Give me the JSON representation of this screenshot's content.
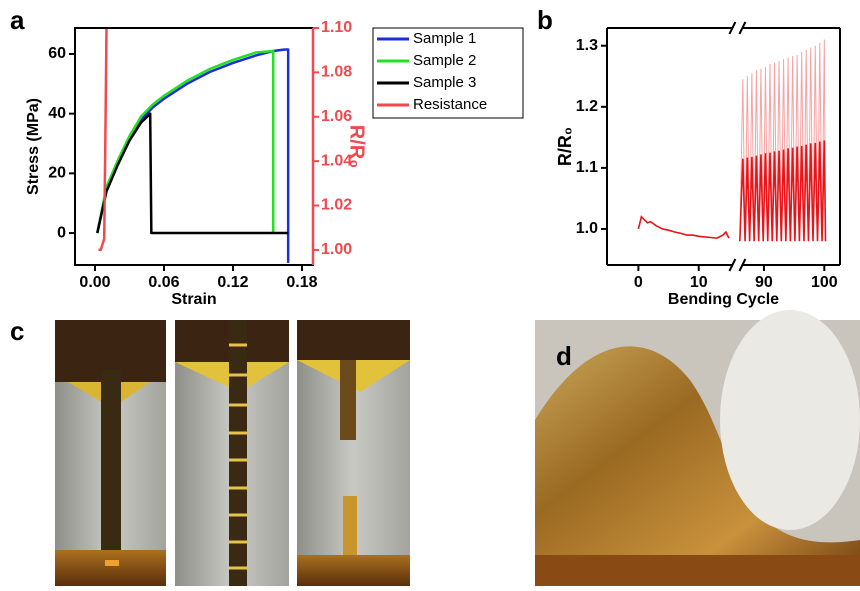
{
  "panel_labels": [
    "a",
    "b",
    "c",
    "d"
  ],
  "chart_data": [
    {
      "type": "line",
      "x_label": "Strain",
      "y_label": "Stress (MPa)",
      "y2_label": "R/R₀",
      "y2_color": "#f0494f",
      "xlim": [
        -0.0174,
        0.1896
      ],
      "xticks": [
        {
          "value": 0,
          "label": "0.00"
        },
        0.06,
        0.12,
        0.18
      ],
      "ylim": [
        -10.7,
        68.7
      ],
      "yticks": [
        0,
        20,
        40,
        60
      ],
      "y2lim": [
        0.9932,
        1.1
      ],
      "y2ticks": [
        {
          "value": 1,
          "label": "1.00"
        },
        1.02,
        1.04,
        1.06,
        1.08,
        {
          "value": 1.1,
          "label": "1.10"
        }
      ],
      "legend": "right",
      "series": [
        {
          "name": "Sample 1",
          "color": "#1a2fd6",
          "x": [
            0.002,
            0.01,
            0.02,
            0.03,
            0.04,
            0.05,
            0.06,
            0.08,
            0.1,
            0.12,
            0.14,
            0.155,
            0.165,
            0.168,
            0.168
          ],
          "values": [
            0,
            15,
            24,
            32,
            38,
            42,
            45,
            50,
            54,
            57,
            59.5,
            61,
            61.5,
            61.5,
            -10
          ]
        },
        {
          "name": "Sample 2",
          "color": "#22e022",
          "x": [
            0.002,
            0.01,
            0.02,
            0.03,
            0.04,
            0.05,
            0.06,
            0.08,
            0.1,
            0.12,
            0.14,
            0.155,
            0.155
          ],
          "values": [
            0,
            15.5,
            24.5,
            32.5,
            39,
            43,
            46,
            51,
            55,
            58,
            60.5,
            61,
            0
          ]
        },
        {
          "name": "Sample 3",
          "color": "#000000",
          "x": [
            0.002,
            0.01,
            0.02,
            0.03,
            0.04,
            0.048,
            0.049,
            0.168
          ],
          "values": [
            0,
            14,
            23,
            31,
            37,
            40,
            0,
            0
          ]
        },
        {
          "name": "Resistance",
          "color": "#f0494f",
          "axis": "y2",
          "x": [
            0.003,
            0.005,
            0.008,
            0.009,
            0.01
          ],
          "values": [
            1.0,
            1.0,
            1.005,
            1.05,
            1.1
          ]
        }
      ]
    },
    {
      "type": "line",
      "x_label": "Bending Cycle",
      "y_label": "R/R₀",
      "axis_break": true,
      "x_segments": [
        {
          "xlim": [
            -5.2,
            16.4
          ],
          "xticks": [
            0,
            10
          ]
        },
        {
          "xlim": [
            85.6,
            102.6
          ],
          "xticks": [
            90,
            100
          ]
        }
      ],
      "ylim": [
        0.941,
        1.329
      ],
      "yticks": [
        {
          "value": 1,
          "label": "1.0"
        },
        1.1,
        1.2,
        1.3
      ],
      "series": [
        {
          "color": "#f5a3a3",
          "x": [
            86,
            86.5,
            86.875,
            87.25,
            87.625,
            88,
            88.375,
            88.75,
            89.125,
            89.5,
            89.875,
            90.25,
            90.625,
            91,
            91.375,
            91.75,
            92.125,
            92.5,
            92.875,
            93.25,
            93.625,
            94,
            94.375,
            94.75,
            95.125,
            95.5,
            95.875,
            96.25,
            96.625,
            97,
            97.375,
            97.75,
            98.125,
            98.5,
            98.875,
            99.25,
            99.625,
            100,
            100.2
          ],
          "values": [
            0.98,
            1.245,
            0.98,
            1.25,
            0.98,
            1.255,
            0.98,
            1.26,
            0.98,
            1.262,
            0.98,
            1.265,
            0.98,
            1.27,
            0.98,
            1.272,
            0.98,
            1.275,
            0.98,
            1.278,
            0.98,
            1.28,
            0.98,
            1.283,
            0.98,
            1.285,
            0.98,
            1.29,
            0.98,
            1.293,
            0.98,
            1.297,
            0.98,
            1.3,
            0.98,
            1.305,
            0.98,
            1.31,
            0.98
          ]
        },
        {
          "color": "#e8141a",
          "x": [
            0,
            0.5,
            1,
            1.5,
            2,
            3,
            4,
            5,
            6,
            7,
            8,
            9,
            10,
            11,
            12,
            13,
            14,
            14.5,
            15,
            null,
            86,
            86.5,
            86.875,
            87.25,
            87.625,
            88,
            88.375,
            88.75,
            89.125,
            89.5,
            89.875,
            90.25,
            90.625,
            91,
            91.375,
            91.75,
            92.125,
            92.5,
            92.875,
            93.25,
            93.625,
            94,
            94.375,
            94.75,
            95.125,
            95.5,
            95.875,
            96.25,
            96.625,
            97,
            97.375,
            97.75,
            98.125,
            98.5,
            98.875,
            99.25,
            99.625,
            100,
            100.2
          ],
          "values": [
            1.0,
            1.02,
            1.015,
            1.01,
            1.012,
            1.005,
            1.0,
            0.998,
            0.995,
            0.993,
            0.99,
            0.99,
            0.988,
            0.987,
            0.986,
            0.985,
            0.99,
            0.995,
            0.985,
            null,
            0.98,
            1.115,
            0.98,
            1.117,
            0.98,
            1.118,
            0.98,
            1.12,
            0.98,
            1.122,
            0.98,
            1.124,
            0.98,
            1.125,
            0.98,
            1.127,
            0.98,
            1.128,
            0.98,
            1.13,
            0.98,
            1.132,
            0.98,
            1.133,
            0.98,
            1.135,
            0.98,
            1.136,
            0.98,
            1.138,
            0.98,
            1.14,
            0.98,
            1.141,
            0.98,
            1.143,
            0.98,
            1.145,
            0.98
          ]
        }
      ]
    }
  ]
}
